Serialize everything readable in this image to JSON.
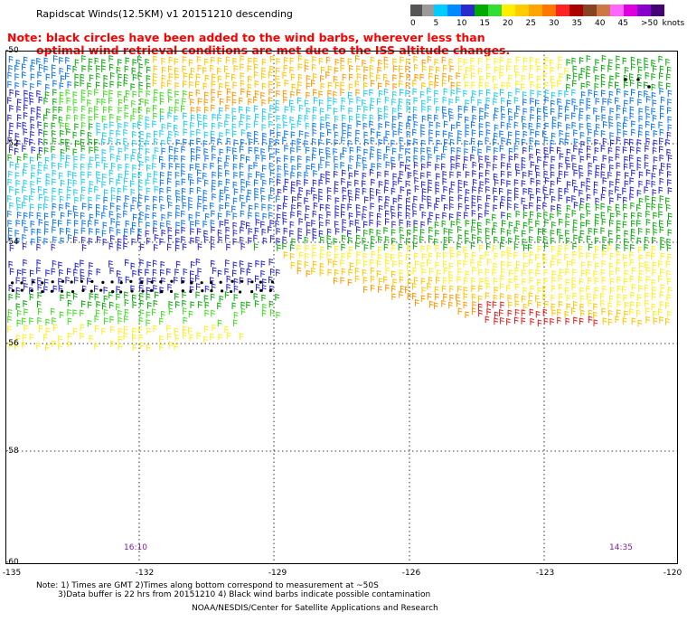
{
  "title": "Rapidscat Winds(12.5KM) v1 20151210 descending",
  "note": {
    "line1": "Note: black circles have been added to the wind barbs, wherever less than",
    "line2": "optimal wind retrieval conditions are met due to the ISS altitude changes."
  },
  "legend": {
    "unit": "knots",
    "labels": [
      "0",
      "5",
      "10",
      "15",
      "20",
      "25",
      "30",
      "35",
      "40",
      "45",
      ">50"
    ],
    "colors": [
      "#555555",
      "#9a9a9a",
      "#00ccff",
      "#0088ff",
      "#2a2acc",
      "#00aa00",
      "#33dd33",
      "#ffee00",
      "#ffcc00",
      "#ffa500",
      "#ff7700",
      "#ff2222",
      "#aa0000",
      "#884422",
      "#cc7744",
      "#ff66ff",
      "#dd00dd",
      "#8800cc",
      "#440077"
    ]
  },
  "map": {
    "lat_labels": [
      "-50",
      "-52",
      "-54",
      "-56",
      "-58",
      "-60"
    ],
    "lon_labels": [
      "-135",
      "-132",
      "-129",
      "-126",
      "-123",
      "-120"
    ],
    "time_labels": [
      "16:10",
      "14:35"
    ]
  },
  "footer": {
    "line1": "Note: 1) Times are GMT 2)Times along bottom correspond to measurement at ~50S",
    "line2": "3)Data buffer is 22 hrs from 20151210 4) Black wind barbs indicate possible contamination",
    "credit": "NOAA/NESDIS/Center for Satellite Applications and Research"
  }
}
